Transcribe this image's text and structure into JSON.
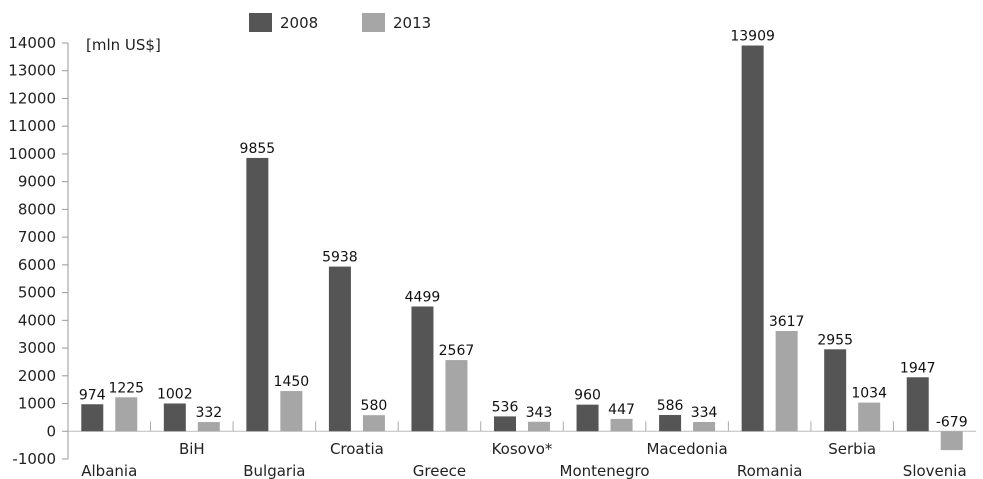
{
  "chart_data": {
    "type": "bar",
    "unit_label": "[mln US$]",
    "categories": [
      "Albania",
      "BiH",
      "Bulgaria",
      "Croatia",
      "Greece",
      "Kosovo*",
      "Montenegro",
      "Macedonia",
      "Romania",
      "Serbia",
      "Slovenia"
    ],
    "series": [
      {
        "name": "2008",
        "color": "#555555",
        "values": [
          974,
          1002,
          9855,
          5938,
          4499,
          536,
          960,
          586,
          13909,
          2955,
          1947
        ]
      },
      {
        "name": "2013",
        "color": "#a6a6a6",
        "values": [
          1225,
          332,
          1450,
          580,
          2567,
          343,
          447,
          334,
          3617,
          1034,
          -679
        ]
      }
    ],
    "ylim": [
      -1000,
      14000
    ],
    "yticks": [
      -1000,
      0,
      1000,
      2000,
      3000,
      4000,
      5000,
      6000,
      7000,
      8000,
      9000,
      10000,
      11000,
      12000,
      13000,
      14000
    ],
    "grid": false,
    "legend": "top-left"
  }
}
